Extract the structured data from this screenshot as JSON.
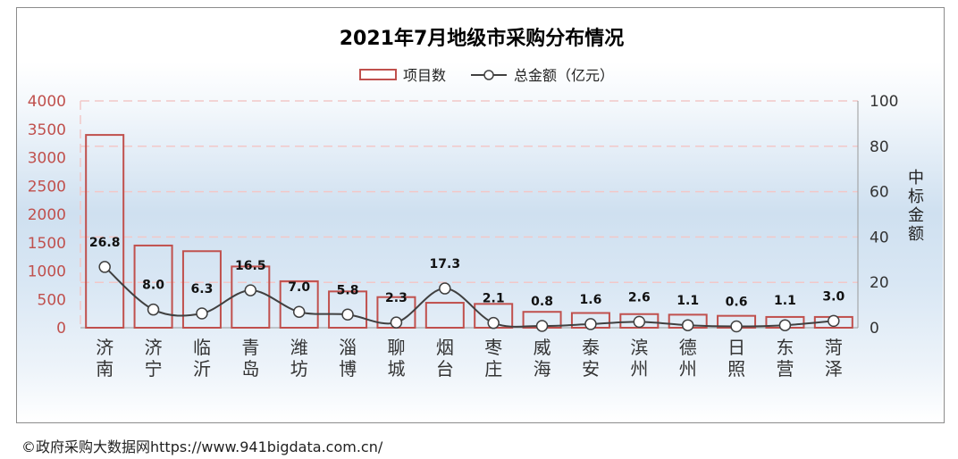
{
  "chart_data": {
    "type": "bar",
    "title": "2021年7月地级市采购分布情况",
    "legend": {
      "position": "top-center",
      "items": [
        "项目数",
        "总金额（亿元）"
      ]
    },
    "categories": [
      "济南",
      "济宁",
      "临沂",
      "青岛",
      "潍坊",
      "淄博",
      "聊城",
      "烟台",
      "枣庄",
      "威海",
      "泰安",
      "滨州",
      "德州",
      "日照",
      "东营",
      "菏泽"
    ],
    "series": [
      {
        "name": "项目数",
        "type": "bar",
        "axis": "left",
        "color": "#c0504d",
        "values": [
          3400,
          1450,
          1350,
          1080,
          820,
          640,
          540,
          440,
          420,
          280,
          260,
          240,
          230,
          210,
          190,
          190
        ]
      },
      {
        "name": "总金额（亿元）",
        "type": "line",
        "axis": "right",
        "color": "#404040",
        "values": [
          26.8,
          8.0,
          6.3,
          16.5,
          7.0,
          5.8,
          2.3,
          17.3,
          2.1,
          0.8,
          1.6,
          2.6,
          1.1,
          0.6,
          1.1,
          3.0
        ],
        "labels": [
          "26.8",
          "8.0",
          "6.3",
          "16.5",
          "7.0",
          "5.8",
          "2.3",
          "17.3",
          "2.1",
          "0.8",
          "1.6",
          "2.6",
          "1.1",
          "0.6",
          "1.1",
          "3.0"
        ]
      }
    ],
    "y_left": {
      "ylim": [
        0,
        4000
      ],
      "ticks": [
        "0",
        "500",
        "1000",
        "1500",
        "2000",
        "2500",
        "3000",
        "3500",
        "4000"
      ],
      "color": "#c0504d"
    },
    "y_right": {
      "ylabel": "中标金额",
      "ylim": [
        0,
        100
      ],
      "ticks": [
        "0",
        "20",
        "40",
        "60",
        "80",
        "100"
      ]
    },
    "grid": true
  },
  "footer": "©政府采购大数据网https://www.941bigdata.com.cn/"
}
